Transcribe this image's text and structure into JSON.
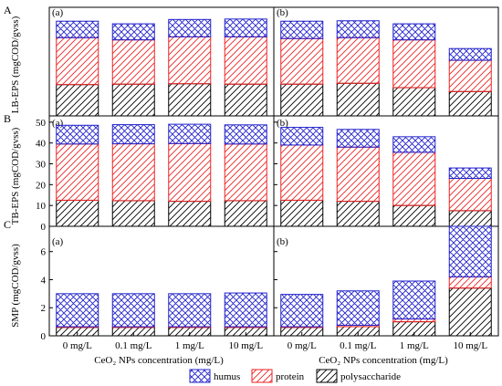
{
  "figure": {
    "rows": [
      {
        "letter": "A",
        "ylabel": "LB-EPS (mgCOD/gvss)"
      },
      {
        "letter": "B",
        "ylabel": "TB-EPS (mgCOD/gvss)"
      },
      {
        "letter": "C",
        "ylabel": "SMP (mgCOD/gvss)"
      }
    ],
    "panels": [
      "(a)",
      "(b)"
    ],
    "xlabel_left": "CeO₂ NPs concentration (mg/L)",
    "xlabel_right": "CeO₂ NPs concentration (mg/L)",
    "legend": [
      {
        "name": "humus",
        "color": "#2222cc",
        "hatch": "cross"
      },
      {
        "name": "protein",
        "color": "#ee2222",
        "hatch": "diag"
      },
      {
        "name": "polysaccharide",
        "color": "#000000",
        "hatch": "diag"
      }
    ]
  },
  "chart_data": [
    {
      "type": "bar",
      "stacked": true,
      "row": "A",
      "panel": "(a)",
      "categories": [
        "0 mg/L",
        "0.1 mg/L",
        "1 mg/L",
        "10 mg/L"
      ],
      "ylabel": "LB-EPS (mgCOD/gvss)",
      "ylim": [
        0,
        25
      ],
      "yticks": [],
      "series": [
        {
          "name": "polysaccharide",
          "values": [
            7.2,
            7.3,
            7.4,
            7.3
          ]
        },
        {
          "name": "protein",
          "values": [
            10.8,
            10.2,
            10.8,
            10.9
          ]
        },
        {
          "name": "humus",
          "values": [
            3.8,
            3.7,
            4.0,
            4.1
          ]
        }
      ]
    },
    {
      "type": "bar",
      "stacked": true,
      "row": "A",
      "panel": "(b)",
      "categories": [
        "0 mg/L",
        "0.1 mg/L",
        "1 mg/L",
        "10 mg/L"
      ],
      "ylim": [
        0,
        25
      ],
      "yticks": [],
      "series": [
        {
          "name": "polysaccharide",
          "values": [
            7.3,
            7.5,
            6.5,
            5.6
          ]
        },
        {
          "name": "protein",
          "values": [
            10.5,
            10.5,
            11.0,
            7.2
          ]
        },
        {
          "name": "humus",
          "values": [
            4.0,
            3.9,
            3.7,
            2.7
          ]
        }
      ]
    },
    {
      "type": "bar",
      "stacked": true,
      "row": "B",
      "panel": "(a)",
      "categories": [
        "0 mg/L",
        "0.1 mg/L",
        "1 mg/L",
        "10 mg/L"
      ],
      "ylabel": "TB-EPS (mgCOD/gvss)",
      "ylim": [
        0,
        53
      ],
      "yticks": [
        0,
        10,
        20,
        30,
        40,
        50
      ],
      "series": [
        {
          "name": "polysaccharide",
          "values": [
            12.5,
            12.3,
            12.0,
            12.3
          ]
        },
        {
          "name": "protein",
          "values": [
            27.0,
            27.3,
            27.7,
            27.2
          ]
        },
        {
          "name": "humus",
          "values": [
            9.0,
            9.2,
            9.3,
            9.2
          ]
        }
      ]
    },
    {
      "type": "bar",
      "stacked": true,
      "row": "B",
      "panel": "(b)",
      "categories": [
        "0 mg/L",
        "0.1 mg/L",
        "1 mg/L",
        "10 mg/L"
      ],
      "ylim": [
        0,
        53
      ],
      "yticks": [
        0,
        10,
        20,
        30,
        40,
        50
      ],
      "series": [
        {
          "name": "polysaccharide",
          "values": [
            12.5,
            12.0,
            10.0,
            7.5
          ]
        },
        {
          "name": "protein",
          "values": [
            26.5,
            26.0,
            25.5,
            15.5
          ]
        },
        {
          "name": "humus",
          "values": [
            8.5,
            8.5,
            7.5,
            5.0
          ]
        }
      ]
    },
    {
      "type": "bar",
      "stacked": true,
      "row": "C",
      "panel": "(a)",
      "categories": [
        "0 mg/L",
        "0.1 mg/L",
        "1 mg/L",
        "10 mg/L"
      ],
      "ylabel": "SMP (mgCOD/gvss)",
      "ylim": [
        0,
        7.8
      ],
      "yticks": [
        0,
        2,
        4,
        6
      ],
      "series": [
        {
          "name": "polysaccharide",
          "values": [
            0.6,
            0.6,
            0.6,
            0.6
          ]
        },
        {
          "name": "protein",
          "values": [
            0.05,
            0.05,
            0.05,
            0.05
          ]
        },
        {
          "name": "humus",
          "values": [
            2.35,
            2.35,
            2.35,
            2.4
          ]
        }
      ]
    },
    {
      "type": "bar",
      "stacked": true,
      "row": "C",
      "panel": "(b)",
      "categories": [
        "0 mg/L",
        "0.1 mg/L",
        "1 mg/L",
        "10 mg/L"
      ],
      "ylim": [
        0,
        7.8
      ],
      "yticks": [
        0,
        2,
        4,
        6
      ],
      "series": [
        {
          "name": "polysaccharide",
          "values": [
            0.6,
            0.65,
            1.0,
            3.4
          ]
        },
        {
          "name": "protein",
          "values": [
            0.05,
            0.1,
            0.2,
            0.8
          ]
        },
        {
          "name": "humus",
          "values": [
            2.3,
            2.45,
            2.7,
            3.6
          ]
        }
      ]
    }
  ]
}
